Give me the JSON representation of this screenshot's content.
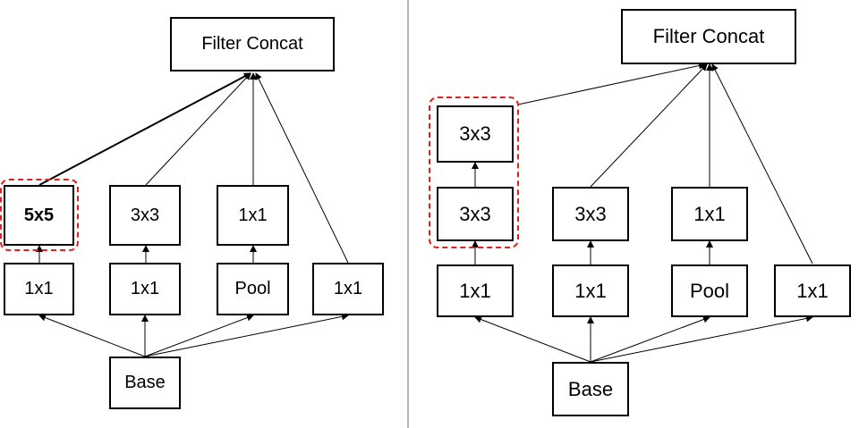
{
  "left_diagram": {
    "filter_concat": "Filter Concat",
    "top_row": [
      "5x5",
      "3x3",
      "1x1"
    ],
    "bottom_row": [
      "1x1",
      "1x1",
      "Pool",
      "1x1"
    ],
    "base": "Base"
  },
  "right_diagram": {
    "filter_concat": "Filter Concat",
    "stack_top": "3x3",
    "top_row": [
      "3x3",
      "3x3",
      "1x1"
    ],
    "bottom_row": [
      "1x1",
      "1x1",
      "Pool",
      "1x1"
    ],
    "base": "Base"
  },
  "colors": {
    "highlight": "#e02020",
    "divider": "#b8b8b8",
    "stroke": "#000000"
  }
}
